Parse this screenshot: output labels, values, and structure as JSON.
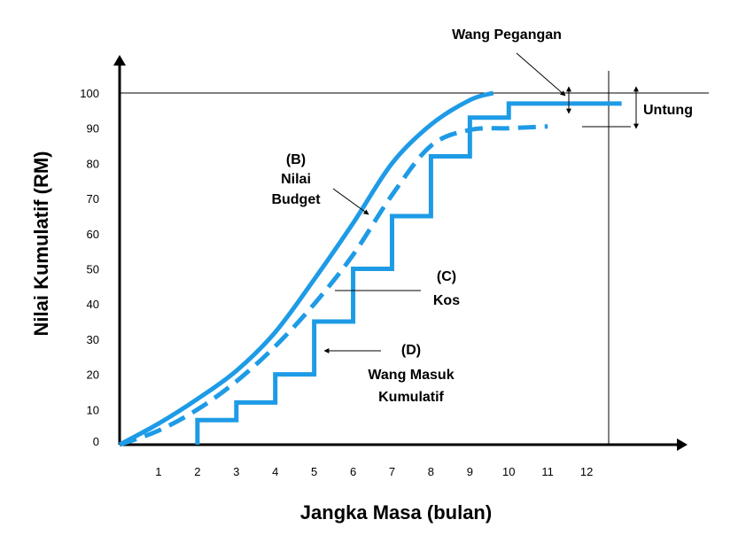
{
  "chart_data": {
    "type": "line",
    "title": "",
    "xlabel": "Jangka Masa (bulan)",
    "ylabel": "Nilai Kumulatif  (RM)",
    "x_ticks": [
      1,
      2,
      3,
      4,
      5,
      6,
      7,
      8,
      9,
      10,
      11,
      12
    ],
    "y_ticks": [
      0,
      10,
      20,
      30,
      40,
      50,
      60,
      70,
      80,
      90,
      100
    ],
    "xlim": [
      0,
      13.5
    ],
    "ylim": [
      0,
      100
    ],
    "grid": false,
    "colors": {
      "series": "#1e9be6",
      "axes": "#000000"
    },
    "series": [
      {
        "name": "(B) Nilai Budget",
        "style": "solid",
        "x": [
          0,
          1,
          2,
          3,
          4,
          5,
          6,
          7,
          8,
          9,
          9.6
        ],
        "y": [
          0,
          6,
          13,
          21,
          32,
          47,
          63,
          80,
          91,
          98,
          100
        ]
      },
      {
        "name": "(C) Kos",
        "style": "dashed",
        "x": [
          0,
          1,
          2,
          3,
          4,
          5,
          6,
          7,
          8,
          9,
          10,
          11
        ],
        "y": [
          0,
          4,
          10,
          18,
          28,
          40,
          54,
          71,
          85,
          89.5,
          90,
          90.5
        ]
      },
      {
        "name": "(D) Wang Masuk Kumulatif",
        "style": "step",
        "x": [
          2,
          2,
          3,
          3,
          4,
          4,
          5,
          5,
          6,
          6,
          7,
          7,
          8,
          8,
          9,
          9,
          10,
          10,
          12.9
        ],
        "y": [
          0,
          7,
          7,
          12,
          12,
          20,
          20,
          35,
          35,
          50,
          50,
          65,
          65,
          82,
          82,
          93,
          93,
          97,
          97
        ]
      }
    ],
    "annotations": {
      "budget": [
        "(B)",
        "Nilai",
        "Budget"
      ],
      "kos": [
        "(C)",
        "Kos"
      ],
      "wang_masuk": [
        "(D)",
        "Wang Masuk",
        "Kumulatif"
      ],
      "wang_pegangan": "Wang Pegangan",
      "untung": "Untung"
    }
  }
}
